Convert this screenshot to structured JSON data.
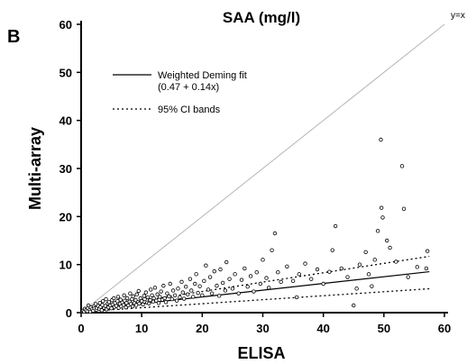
{
  "chart_data": {
    "type": "scatter",
    "panel_label": "B",
    "title": "SAA (mg/l)",
    "xlabel": "ELISA",
    "ylabel": "Multi-array",
    "xlim": [
      0,
      60
    ],
    "ylim": [
      0,
      60
    ],
    "xticks": [
      0,
      10,
      20,
      30,
      40,
      50,
      60
    ],
    "yticks": [
      0,
      10,
      20,
      30,
      40,
      50,
      60
    ],
    "grid": false,
    "identity_line_label": "y=x",
    "legend": {
      "position": "upper-left",
      "entries": [
        {
          "label": "Weighted Deming fit",
          "sublabel": "(0.47 + 0.14x)",
          "style": "solid"
        },
        {
          "label": "95% CI bands",
          "style": "dotted"
        }
      ]
    },
    "fit": {
      "intercept": 0.47,
      "slope": 0.14
    },
    "ci_upper": {
      "intercept": 0.5,
      "slope": 0.195
    },
    "ci_lower": {
      "intercept": 0.2,
      "slope": 0.083
    },
    "points": [
      [
        0.3,
        0.4
      ],
      [
        0.5,
        0.2
      ],
      [
        0.6,
        0.8
      ],
      [
        0.8,
        0.5
      ],
      [
        1.0,
        0.3
      ],
      [
        1.1,
        0.9
      ],
      [
        1.2,
        1.5
      ],
      [
        1.4,
        0.6
      ],
      [
        1.5,
        0.2
      ],
      [
        1.6,
        1.1
      ],
      [
        1.8,
        0.7
      ],
      [
        2.0,
        0.4
      ],
      [
        2.1,
        1.3
      ],
      [
        2.2,
        0.9
      ],
      [
        2.4,
        1.8
      ],
      [
        2.5,
        0.6
      ],
      [
        2.6,
        1.0
      ],
      [
        2.8,
        1.4
      ],
      [
        3.0,
        0.8
      ],
      [
        3.1,
        2.0
      ],
      [
        3.2,
        1.2
      ],
      [
        3.4,
        0.5
      ],
      [
        3.5,
        1.6
      ],
      [
        3.6,
        2.4
      ],
      [
        3.8,
        1.0
      ],
      [
        4.0,
        1.4
      ],
      [
        4.1,
        2.8
      ],
      [
        4.2,
        0.7
      ],
      [
        4.4,
        1.9
      ],
      [
        4.5,
        1.1
      ],
      [
        4.6,
        2.2
      ],
      [
        4.8,
        1.5
      ],
      [
        5.0,
        0.9
      ],
      [
        5.1,
        2.6
      ],
      [
        5.2,
        1.7
      ],
      [
        5.4,
        3.0
      ],
      [
        5.5,
        1.2
      ],
      [
        5.6,
        2.0
      ],
      [
        5.8,
        1.4
      ],
      [
        6.0,
        2.4
      ],
      [
        6.1,
        3.3
      ],
      [
        6.2,
        1.0
      ],
      [
        6.4,
        1.8
      ],
      [
        6.5,
        2.7
      ],
      [
        6.6,
        1.3
      ],
      [
        6.8,
        2.1
      ],
      [
        7.0,
        1.6
      ],
      [
        7.1,
        3.6
      ],
      [
        7.2,
        2.5
      ],
      [
        7.4,
        1.1
      ],
      [
        7.5,
        2.0
      ],
      [
        7.6,
        3.0
      ],
      [
        7.8,
        1.5
      ],
      [
        8.0,
        2.3
      ],
      [
        8.1,
        4.0
      ],
      [
        8.2,
        1.8
      ],
      [
        8.4,
        2.8
      ],
      [
        8.5,
        1.3
      ],
      [
        8.6,
        3.4
      ],
      [
        8.8,
        2.0
      ],
      [
        9.0,
        2.6
      ],
      [
        9.1,
        1.6
      ],
      [
        9.2,
        3.8
      ],
      [
        9.4,
        2.2
      ],
      [
        9.5,
        4.5
      ],
      [
        9.6,
        1.9
      ],
      [
        9.8,
        3.0
      ],
      [
        10.0,
        2.4
      ],
      [
        10.2,
        1.7
      ],
      [
        10.4,
        3.5
      ],
      [
        10.5,
        2.8
      ],
      [
        10.7,
        4.2
      ],
      [
        10.9,
        2.1
      ],
      [
        11.0,
        3.2
      ],
      [
        11.2,
        1.9
      ],
      [
        11.4,
        2.6
      ],
      [
        11.5,
        4.8
      ],
      [
        11.7,
        3.6
      ],
      [
        11.9,
        2.3
      ],
      [
        12.0,
        3.0
      ],
      [
        12.2,
        5.2
      ],
      [
        12.4,
        2.5
      ],
      [
        12.6,
        3.8
      ],
      [
        12.8,
        2.0
      ],
      [
        13.0,
        3.3
      ],
      [
        13.2,
        4.4
      ],
      [
        13.4,
        2.7
      ],
      [
        13.6,
        5.6
      ],
      [
        13.8,
        3.0
      ],
      [
        14.0,
        2.2
      ],
      [
        14.2,
        4.0
      ],
      [
        14.5,
        3.4
      ],
      [
        14.7,
        6.0
      ],
      [
        15.0,
        2.8
      ],
      [
        15.2,
        4.6
      ],
      [
        15.5,
        3.6
      ],
      [
        15.8,
        2.5
      ],
      [
        16.0,
        5.0
      ],
      [
        16.3,
        3.2
      ],
      [
        16.6,
        6.4
      ],
      [
        16.8,
        4.2
      ],
      [
        17.0,
        2.9
      ],
      [
        17.3,
        5.4
      ],
      [
        17.6,
        3.8
      ],
      [
        18.0,
        7.0
      ],
      [
        18.2,
        4.6
      ],
      [
        18.5,
        3.3
      ],
      [
        18.8,
        6.0
      ],
      [
        19.0,
        8.0
      ],
      [
        19.3,
        4.1
      ],
      [
        19.6,
        5.5
      ],
      [
        20.0,
        3.6
      ],
      [
        20.3,
        6.6
      ],
      [
        20.6,
        9.8
      ],
      [
        21.0,
        4.8
      ],
      [
        21.3,
        7.4
      ],
      [
        21.6,
        4.0
      ],
      [
        22.0,
        8.6
      ],
      [
        22.4,
        5.6
      ],
      [
        22.8,
        3.5
      ],
      [
        23.0,
        9.0
      ],
      [
        23.4,
        6.2
      ],
      [
        23.8,
        4.6
      ],
      [
        24.0,
        10.5
      ],
      [
        24.5,
        7.0
      ],
      [
        25.0,
        5.0
      ],
      [
        25.4,
        8.0
      ],
      [
        26.0,
        4.0
      ],
      [
        26.5,
        6.8
      ],
      [
        27.0,
        9.2
      ],
      [
        27.5,
        5.4
      ],
      [
        28.0,
        7.6
      ],
      [
        28.5,
        4.4
      ],
      [
        29.0,
        8.4
      ],
      [
        29.6,
        6.0
      ],
      [
        30.0,
        11.0
      ],
      [
        30.6,
        7.2
      ],
      [
        31.0,
        5.2
      ],
      [
        31.5,
        13.0
      ],
      [
        32.0,
        16.5
      ],
      [
        32.5,
        8.4
      ],
      [
        33.0,
        6.4
      ],
      [
        34.0,
        9.6
      ],
      [
        35.0,
        6.6
      ],
      [
        35.6,
        3.2
      ],
      [
        36.0,
        8.0
      ],
      [
        37.0,
        10.2
      ],
      [
        38.0,
        7.0
      ],
      [
        39.0,
        9.0
      ],
      [
        40.0,
        6.0
      ],
      [
        41.0,
        8.5
      ],
      [
        41.5,
        13.0
      ],
      [
        42.0,
        18.0
      ],
      [
        43.0,
        9.2
      ],
      [
        44.0,
        7.4
      ],
      [
        45.0,
        1.5
      ],
      [
        45.5,
        5.0
      ],
      [
        46.0,
        10.0
      ],
      [
        47.0,
        12.6
      ],
      [
        47.5,
        8.0
      ],
      [
        48.0,
        5.5
      ],
      [
        48.5,
        11.0
      ],
      [
        49.0,
        17.0
      ],
      [
        49.5,
        36.0
      ],
      [
        49.6,
        21.8
      ],
      [
        49.8,
        19.8
      ],
      [
        50.5,
        15.0
      ],
      [
        51.0,
        13.5
      ],
      [
        52.0,
        10.6
      ],
      [
        53.0,
        30.5
      ],
      [
        53.3,
        21.6
      ],
      [
        54.0,
        7.4
      ],
      [
        55.5,
        9.5
      ],
      [
        57.0,
        9.2
      ],
      [
        57.2,
        12.8
      ]
    ]
  }
}
